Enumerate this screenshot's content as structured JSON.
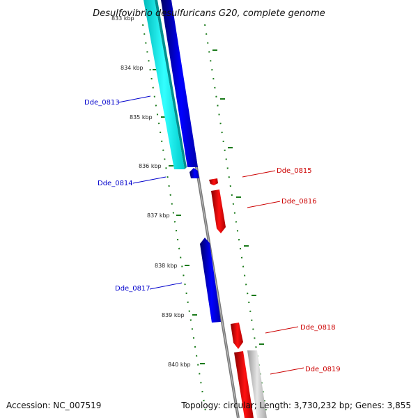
{
  "title": "Desulfovibrio desulfuricans G20, complete genome",
  "footer": {
    "accession": "Accession: NC_007519",
    "topology": "Topology: circular; Length: 3,730,232 bp; Genes: 3,855"
  },
  "ruler": {
    "partial_top_label": "833 kbp",
    "ticks": [
      "834 kbp",
      "835 kbp",
      "836 kbp",
      "837 kbp",
      "838 kbp",
      "839 kbp",
      "840 kbp"
    ]
  },
  "genes": [
    {
      "name": "Dde_0813",
      "strand": "reverse",
      "color": "#0000cc"
    },
    {
      "name": "Dde_0814",
      "strand": "reverse",
      "color": "#0000cc"
    },
    {
      "name": "Dde_0815",
      "strand": "forward",
      "color": "#cc0000"
    },
    {
      "name": "Dde_0816",
      "strand": "forward",
      "color": "#cc0000"
    },
    {
      "name": "Dde_0817",
      "strand": "reverse",
      "color": "#0000cc"
    },
    {
      "name": "Dde_0818",
      "strand": "forward",
      "color": "#cc0000"
    },
    {
      "name": "Dde_0819",
      "strand": "forward",
      "color": "#cc0000"
    }
  ],
  "features": [
    {
      "name": "cyan-feature",
      "color": "#00e5e5"
    },
    {
      "name": "gray-feature",
      "color": "#bbbbbb"
    }
  ],
  "colors": {
    "backbone": "#808080",
    "dotted_track": "#1a7a1a",
    "forward": "#cc0000",
    "reverse": "#0000cc"
  }
}
